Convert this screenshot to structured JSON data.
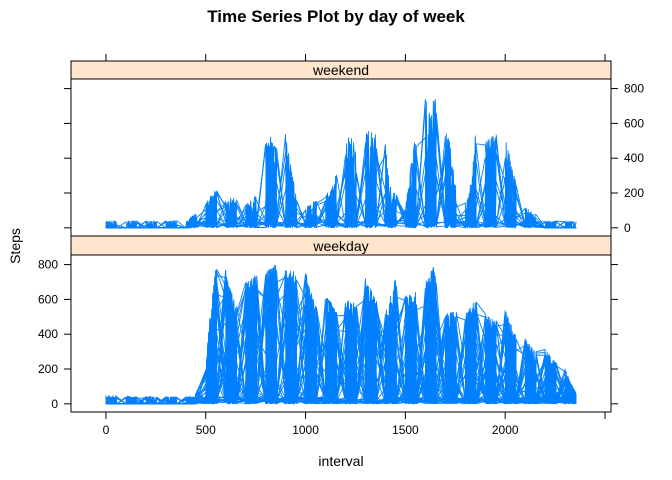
{
  "chart_data": {
    "type": "line",
    "title": "Time Series Plot by day of week",
    "xlabel": "interval",
    "ylabel": "Steps",
    "xlim": [
      -175,
      2530
    ],
    "ylim": [
      -47,
      855
    ],
    "x_ticks": [
      0,
      500,
      1000,
      1500,
      2000
    ],
    "y_ticks": [
      0,
      200,
      400,
      600,
      800
    ],
    "x_tick_labels": [
      "0",
      "500",
      "1000",
      "1500",
      "2000"
    ],
    "y_tick_labels": [
      "0",
      "200",
      "400",
      "600",
      "800"
    ],
    "grid": false,
    "legend": "none",
    "line_color": "#0080ff",
    "strip_color": "#ffe5cc",
    "interval_range": [
      0,
      2355
    ],
    "panels": [
      {
        "label": "weekend",
        "y_tick_side": "right",
        "daily_series_count": 16,
        "max_steps": 785,
        "envelope": [
          [
            0,
            30
          ],
          [
            400,
            45
          ],
          [
            480,
            110
          ],
          [
            560,
            240
          ],
          [
            600,
            170
          ],
          [
            650,
            170
          ],
          [
            700,
            130
          ],
          [
            760,
            200
          ],
          [
            800,
            540
          ],
          [
            860,
            500
          ],
          [
            900,
            545
          ],
          [
            950,
            200
          ],
          [
            1000,
            120
          ],
          [
            1050,
            160
          ],
          [
            1100,
            180
          ],
          [
            1150,
            300
          ],
          [
            1200,
            480
          ],
          [
            1230,
            560
          ],
          [
            1260,
            410
          ],
          [
            1300,
            560
          ],
          [
            1330,
            560
          ],
          [
            1380,
            540
          ],
          [
            1400,
            480
          ],
          [
            1420,
            250
          ],
          [
            1500,
            120
          ],
          [
            1545,
            500
          ],
          [
            1560,
            670
          ],
          [
            1600,
            785
          ],
          [
            1640,
            750
          ],
          [
            1680,
            720
          ],
          [
            1700,
            560
          ],
          [
            1720,
            500
          ],
          [
            1750,
            250
          ],
          [
            1800,
            150
          ],
          [
            1820,
            200
          ],
          [
            1850,
            540
          ],
          [
            1900,
            510
          ],
          [
            1950,
            545
          ],
          [
            2000,
            525
          ],
          [
            2050,
            280
          ],
          [
            2100,
            120
          ],
          [
            2200,
            40
          ],
          [
            2355,
            5
          ]
        ]
      },
      {
        "label": "weekday",
        "y_tick_side": "left",
        "daily_series_count": 45,
        "max_steps": 806,
        "envelope": [
          [
            0,
            50
          ],
          [
            400,
            40
          ],
          [
            450,
            60
          ],
          [
            500,
            200
          ],
          [
            520,
            500
          ],
          [
            550,
            790
          ],
          [
            580,
            770
          ],
          [
            600,
            780
          ],
          [
            620,
            680
          ],
          [
            650,
            560
          ],
          [
            700,
            700
          ],
          [
            750,
            750
          ],
          [
            800,
            760
          ],
          [
            850,
            806
          ],
          [
            880,
            780
          ],
          [
            920,
            760
          ],
          [
            950,
            780
          ],
          [
            980,
            700
          ],
          [
            1000,
            760
          ],
          [
            1050,
            560
          ],
          [
            1100,
            640
          ],
          [
            1150,
            540
          ],
          [
            1200,
            600
          ],
          [
            1250,
            590
          ],
          [
            1300,
            720
          ],
          [
            1350,
            600
          ],
          [
            1400,
            520
          ],
          [
            1450,
            730
          ],
          [
            1500,
            620
          ],
          [
            1550,
            640
          ],
          [
            1600,
            700
          ],
          [
            1640,
            785
          ],
          [
            1700,
            520
          ],
          [
            1750,
            530
          ],
          [
            1800,
            520
          ],
          [
            1850,
            600
          ],
          [
            1900,
            520
          ],
          [
            1950,
            480
          ],
          [
            2000,
            560
          ],
          [
            2050,
            400
          ],
          [
            2100,
            380
          ],
          [
            2150,
            300
          ],
          [
            2200,
            320
          ],
          [
            2250,
            240
          ],
          [
            2300,
            200
          ],
          [
            2355,
            60
          ]
        ]
      }
    ]
  }
}
